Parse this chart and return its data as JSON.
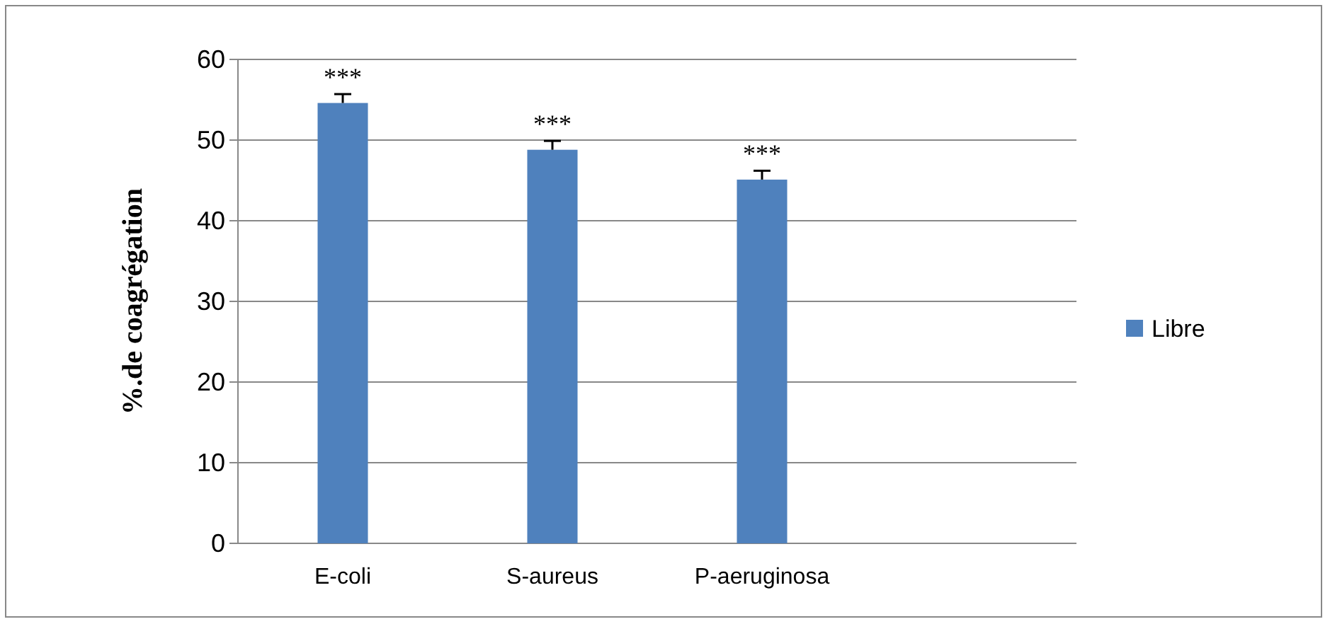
{
  "chart_data": {
    "type": "bar",
    "ylabel": "%.de coagrégation",
    "categories": [
      "E-coli",
      "S-aureus",
      "P-aeruginosa",
      null
    ],
    "series": [
      {
        "name": "Libre",
        "color": "#4f81bd",
        "values": [
          54.6,
          48.8,
          45.1,
          null
        ],
        "errors": [
          [
            54.6,
            55.7
          ],
          [
            48.8,
            49.9
          ],
          [
            45.1,
            46.2
          ],
          null
        ]
      }
    ],
    "ylim": [
      0,
      60
    ],
    "yticks": [
      0,
      10,
      20,
      30,
      40,
      50,
      60
    ],
    "grid": "y",
    "legend": "right",
    "annotations": [
      "***",
      "***",
      "***"
    ]
  }
}
